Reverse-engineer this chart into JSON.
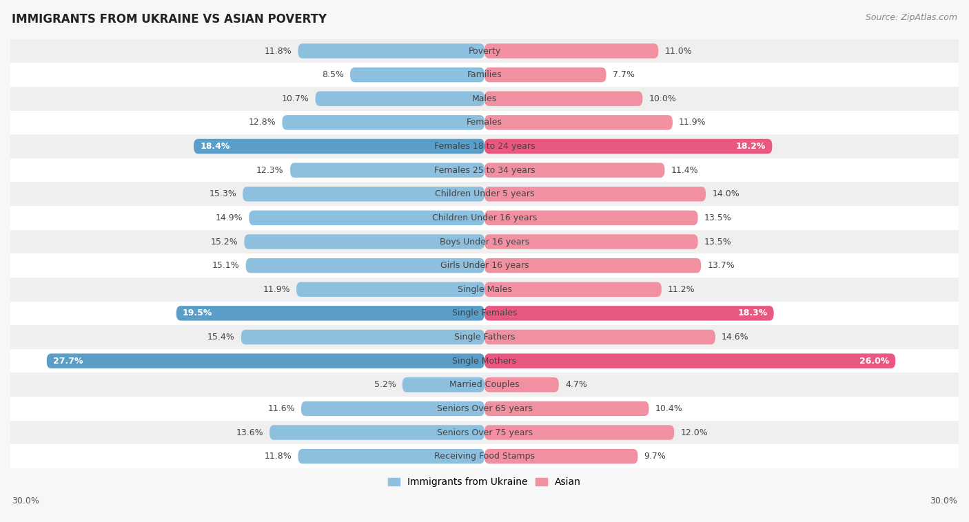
{
  "title": "IMMIGRANTS FROM UKRAINE VS ASIAN POVERTY",
  "source": "Source: ZipAtlas.com",
  "categories": [
    "Poverty",
    "Families",
    "Males",
    "Females",
    "Females 18 to 24 years",
    "Females 25 to 34 years",
    "Children Under 5 years",
    "Children Under 16 years",
    "Boys Under 16 years",
    "Girls Under 16 years",
    "Single Males",
    "Single Females",
    "Single Fathers",
    "Single Mothers",
    "Married Couples",
    "Seniors Over 65 years",
    "Seniors Over 75 years",
    "Receiving Food Stamps"
  ],
  "ukraine_values": [
    11.8,
    8.5,
    10.7,
    12.8,
    18.4,
    12.3,
    15.3,
    14.9,
    15.2,
    15.1,
    11.9,
    19.5,
    15.4,
    27.7,
    5.2,
    11.6,
    13.6,
    11.8
  ],
  "asian_values": [
    11.0,
    7.7,
    10.0,
    11.9,
    18.2,
    11.4,
    14.0,
    13.5,
    13.5,
    13.7,
    11.2,
    18.3,
    14.6,
    26.0,
    4.7,
    10.4,
    12.0,
    9.7
  ],
  "ukraine_color": "#8dbfde",
  "asian_color": "#f090a0",
  "ukraine_highlight_color": "#5a9ec8",
  "asian_highlight_color": "#e85880",
  "background_color": "#f7f7f7",
  "row_color_light": "#ffffff",
  "row_color_dark": "#efefef",
  "xlim": 30.0,
  "bar_height": 0.62,
  "legend_ukraine": "Immigrants from Ukraine",
  "legend_asian": "Asian",
  "highlight_rows": [
    4,
    11,
    13
  ],
  "value_label_fontsize": 9.0,
  "category_fontsize": 9.0
}
